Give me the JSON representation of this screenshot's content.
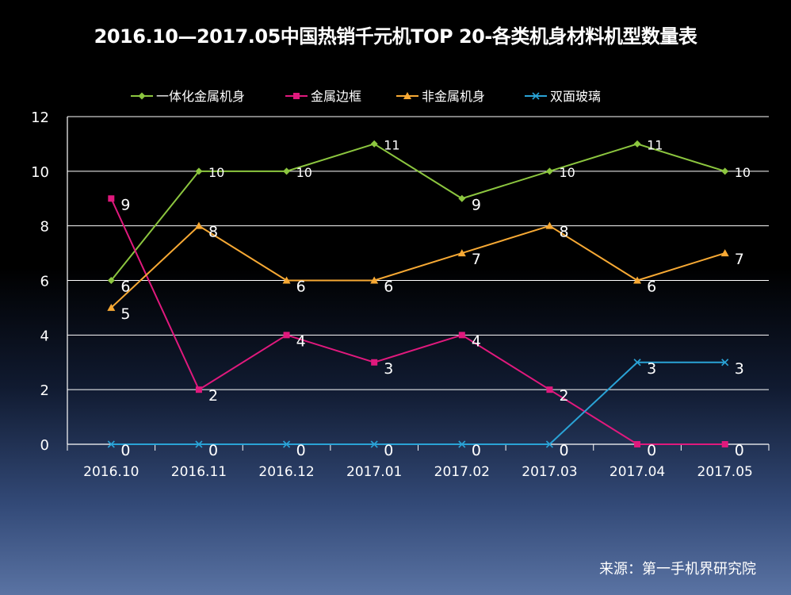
{
  "title": "2016.10—2017.05中国热销千元机TOP 20-各类机身材料机型数量表",
  "source": "来源：第一手机界研究院",
  "chart_data": {
    "type": "line",
    "categories": [
      "2016.10",
      "2016.11",
      "2016.12",
      "2017.01",
      "2017.02",
      "2017.03",
      "2017.04",
      "2017.05"
    ],
    "ylim": [
      0,
      12
    ],
    "yticks": [
      "0",
      "2",
      "4",
      "6",
      "8",
      "10",
      "12"
    ],
    "grid": true,
    "legend": "top",
    "series": [
      {
        "name": "一体化金属机身",
        "color": "#8cc63f",
        "marker": "diamond",
        "values": [
          6,
          10,
          10,
          11,
          9,
          10,
          11,
          10
        ]
      },
      {
        "name": "金属边框",
        "color": "#e0197d",
        "marker": "square",
        "values": [
          9,
          2,
          4,
          3,
          4,
          2,
          0,
          0
        ]
      },
      {
        "name": "非金属机身",
        "color": "#f7a934",
        "marker": "triangle",
        "values": [
          5,
          8,
          6,
          6,
          7,
          8,
          6,
          7
        ]
      },
      {
        "name": "双面玻璃",
        "color": "#2aa3d6",
        "marker": "x",
        "values": [
          0,
          0,
          0,
          0,
          0,
          0,
          3,
          3
        ]
      }
    ]
  }
}
